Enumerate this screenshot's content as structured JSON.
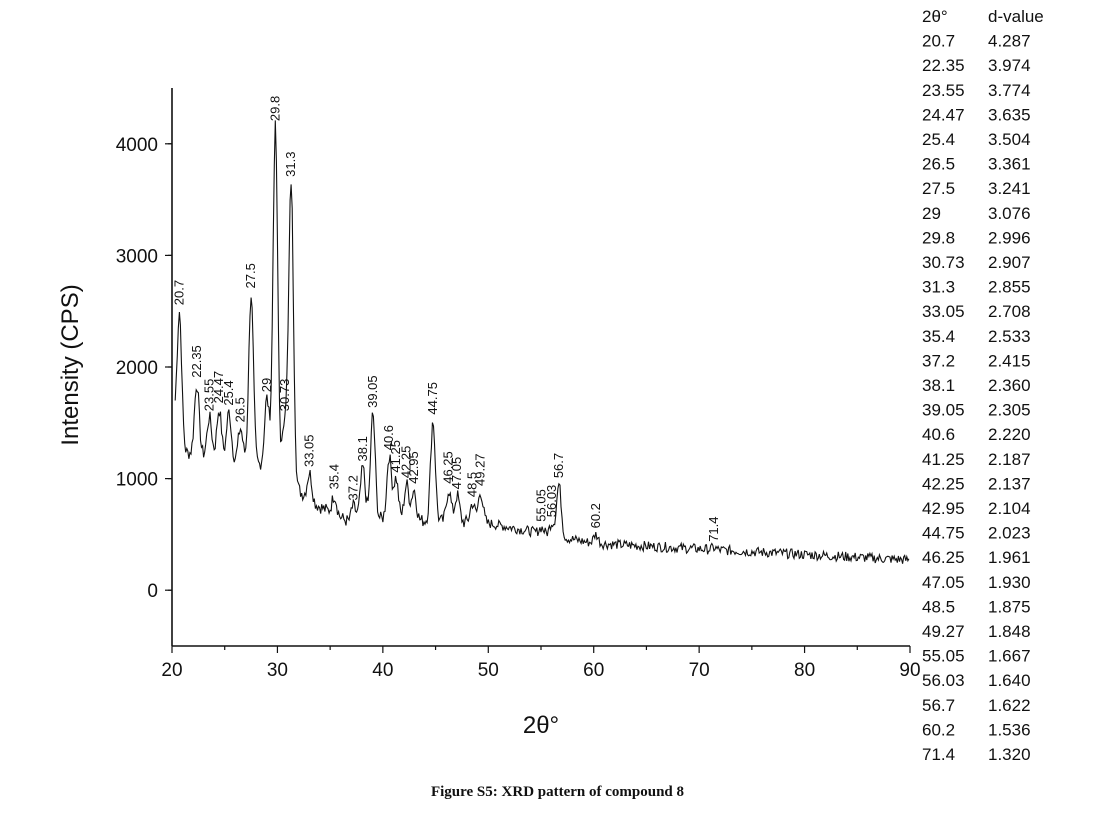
{
  "caption": "Figure S5: XRD pattern of compound 8",
  "chart_data": {
    "type": "line",
    "xlabel": "2θ°",
    "ylabel": "Intensity (CPS)",
    "xlim": [
      20,
      90
    ],
    "ylim": [
      -500,
      4500
    ],
    "x_ticks": [
      20,
      30,
      40,
      50,
      60,
      70,
      80,
      90
    ],
    "y_ticks": [
      0,
      1000,
      2000,
      3000,
      4000
    ],
    "peaks": [
      {
        "x": 20.7,
        "label": "20.7",
        "y": 2500
      },
      {
        "x": 22.35,
        "label": "22.35",
        "y": 1850
      },
      {
        "x": 23.55,
        "label": "23.55",
        "y": 1550
      },
      {
        "x": 24.47,
        "label": "24.47",
        "y": 1620
      },
      {
        "x": 25.4,
        "label": "25.4",
        "y": 1600
      },
      {
        "x": 26.5,
        "label": "26.5",
        "y": 1450
      },
      {
        "x": 27.5,
        "label": "27.5",
        "y": 2650
      },
      {
        "x": 29,
        "label": "29",
        "y": 1720
      },
      {
        "x": 29.8,
        "label": "29.8",
        "y": 4150
      },
      {
        "x": 30.73,
        "label": "30.73",
        "y": 1550
      },
      {
        "x": 31.3,
        "label": "31.3",
        "y": 3650
      },
      {
        "x": 33.05,
        "label": "33.05",
        "y": 1050
      },
      {
        "x": 35.4,
        "label": "35.4",
        "y": 850
      },
      {
        "x": 37.2,
        "label": "37.2",
        "y": 750
      },
      {
        "x": 38.1,
        "label": "38.1",
        "y": 1100
      },
      {
        "x": 39.05,
        "label": "39.05",
        "y": 1580
      },
      {
        "x": 40.6,
        "label": "40.6",
        "y": 1200
      },
      {
        "x": 41.25,
        "label": "41.25",
        "y": 1000
      },
      {
        "x": 42.25,
        "label": "42.25",
        "y": 950
      },
      {
        "x": 42.95,
        "label": "42.95",
        "y": 900
      },
      {
        "x": 44.75,
        "label": "44.75",
        "y": 1520
      },
      {
        "x": 46.25,
        "label": "46.25",
        "y": 900
      },
      {
        "x": 47.05,
        "label": "47.05",
        "y": 850
      },
      {
        "x": 48.5,
        "label": "48.5",
        "y": 780
      },
      {
        "x": 49.27,
        "label": "49.27",
        "y": 880
      },
      {
        "x": 55.05,
        "label": "55.05",
        "y": 560
      },
      {
        "x": 56.03,
        "label": "56.03",
        "y": 600
      },
      {
        "x": 56.7,
        "label": "56.7",
        "y": 950
      },
      {
        "x": 60.2,
        "label": "60.2",
        "y": 500
      },
      {
        "x": 71.4,
        "label": "71.4",
        "y": 380
      }
    ],
    "table": {
      "headers": [
        "2θ°",
        "d-value"
      ],
      "rows": [
        [
          "20.7",
          "4.287"
        ],
        [
          "22.35",
          "3.974"
        ],
        [
          "23.55",
          "3.774"
        ],
        [
          "24.47",
          "3.635"
        ],
        [
          "25.4",
          "3.504"
        ],
        [
          "26.5",
          "3.361"
        ],
        [
          "27.5",
          "3.241"
        ],
        [
          "29",
          "3.076"
        ],
        [
          "29.8",
          "2.996"
        ],
        [
          "30.73",
          "2.907"
        ],
        [
          "31.3",
          "2.855"
        ],
        [
          "33.05",
          "2.708"
        ],
        [
          "35.4",
          "2.533"
        ],
        [
          "37.2",
          "2.415"
        ],
        [
          "38.1",
          "2.360"
        ],
        [
          "39.05",
          "2.305"
        ],
        [
          "40.6",
          "2.220"
        ],
        [
          "41.25",
          "2.187"
        ],
        [
          "42.25",
          "2.137"
        ],
        [
          "42.95",
          "2.104"
        ],
        [
          "44.75",
          "2.023"
        ],
        [
          "46.25",
          "1.961"
        ],
        [
          "47.05",
          "1.930"
        ],
        [
          "48.5",
          "1.875"
        ],
        [
          "49.27",
          "1.848"
        ],
        [
          "55.05",
          "1.667"
        ],
        [
          "56.03",
          "1.640"
        ],
        [
          "56.7",
          "1.622"
        ],
        [
          "60.2",
          "1.536"
        ],
        [
          "71.4",
          "1.320"
        ]
      ]
    }
  }
}
